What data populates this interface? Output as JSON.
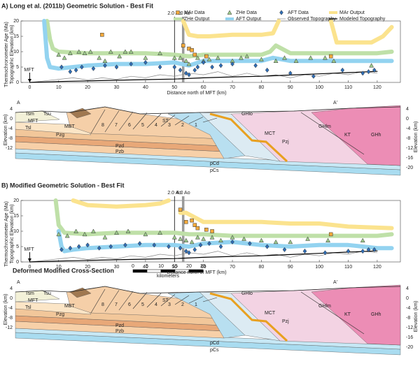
{
  "chart_data": [
    {
      "type": "scatter",
      "title": "A) Long et al. (2011b) Geometric Solution - Best Fit",
      "xlabel": "Distance north of MFT (km)",
      "ylabel": [
        "Thermochronometer Age (Ma)",
        "Topographic Elevation (km)"
      ],
      "xlim": [
        -3,
        128
      ],
      "ylim": [
        0,
        20
      ],
      "xticks": [
        0,
        10,
        20,
        30,
        40,
        50,
        60,
        70,
        80,
        90,
        100,
        110,
        120
      ],
      "yticks": [
        0,
        5,
        10,
        15,
        20
      ],
      "legend": "upper right",
      "annotations": [
        {
          "text": "2.0 Ao",
          "x": 50,
          "color": "#000000"
        },
        {
          "text": "4.0 Ao",
          "x": 53,
          "color": "#9a9a9a"
        },
        {
          "text": "MFT",
          "x": 0,
          "arrow": true
        }
      ],
      "series": [
        {
          "name": "MAr Output",
          "color": "#fbe38e",
          "width": 6,
          "x": [
            53,
            55,
            58,
            62,
            70,
            80,
            84,
            86,
            95,
            104,
            106,
            112,
            118,
            122,
            125
          ],
          "values": [
            20,
            15.5,
            15,
            15,
            15.5,
            15.5,
            16,
            20,
            null,
            20,
            13,
            13,
            13,
            15,
            18
          ]
        },
        {
          "name": "ZHe Output",
          "color": "#bfe0a8",
          "width": 6,
          "x": [
            6,
            7,
            8,
            10,
            20,
            30,
            40,
            50,
            55,
            60,
            70,
            80,
            83,
            85,
            90,
            100,
            110,
            120,
            125
          ],
          "values": [
            20,
            14,
            11,
            10,
            9.5,
            9.5,
            9.5,
            9,
            8.5,
            9,
            9,
            9,
            10,
            12,
            9.5,
            9.5,
            9.5,
            9.5,
            10
          ]
        },
        {
          "name": "AFT Output",
          "color": "#93d3f0",
          "width": 6,
          "x": [
            5,
            6,
            7,
            10,
            15,
            20,
            30,
            40,
            50,
            55,
            60,
            70,
            80,
            82,
            84,
            90,
            100,
            110,
            120,
            125
          ],
          "values": [
            20,
            8,
            5,
            4.5,
            5,
            5.5,
            6,
            6,
            6.5,
            5.5,
            7,
            7,
            7,
            7.5,
            8,
            7,
            7,
            7,
            7,
            7
          ]
        },
        {
          "name": "Observed Topography",
          "color": "#888888",
          "width": 0.7,
          "x": [
            0,
            5,
            10,
            15,
            20,
            25,
            30,
            35,
            40,
            45,
            50,
            55,
            60,
            65,
            70,
            75,
            80,
            85,
            90,
            95,
            100,
            105,
            110,
            115,
            120
          ],
          "values": [
            0,
            0.5,
            1,
            1.5,
            0.8,
            1.5,
            1,
            2,
            1.5,
            2.5,
            2,
            3,
            2.5,
            3.5,
            2,
            3,
            2,
            2.5,
            1.5,
            2.5,
            2,
            3,
            2.5,
            3.5,
            3
          ]
        },
        {
          "name": "Modeled Topography",
          "color": "#000000",
          "width": 1.2,
          "x": [
            0,
            10,
            20,
            30,
            40,
            50,
            60,
            70,
            80,
            90,
            100,
            110,
            120
          ],
          "values": [
            0,
            0.3,
            0.5,
            0.7,
            0.9,
            1.1,
            1.5,
            1.8,
            2,
            2.4,
            2.8,
            3.2,
            3.6
          ]
        },
        {
          "name": "MAr Data",
          "color": "#f2a93b",
          "marker": "square",
          "x": [
            25,
            53,
            55,
            56,
            57,
            61,
            104
          ],
          "values": [
            15.5,
            12,
            11,
            10.5,
            9,
            8.5,
            8.5
          ]
        },
        {
          "name": "ZHe Data",
          "color": "#9cc98a",
          "marker": "triangle",
          "x": [
            10,
            12,
            14,
            17,
            19,
            21,
            24,
            26,
            28,
            31,
            33,
            35,
            40,
            45,
            50,
            52,
            54,
            55,
            58,
            60,
            62,
            65,
            70,
            73,
            75,
            80,
            85,
            88,
            92,
            97,
            102,
            105,
            118
          ],
          "values": [
            9,
            8,
            9.5,
            10,
            9.5,
            10,
            8,
            7,
            10,
            8.5,
            10,
            10,
            8,
            9.5,
            8,
            8,
            7,
            6,
            8,
            7,
            7.5,
            8,
            7,
            8,
            8.5,
            7.5,
            7,
            8,
            7,
            8,
            8,
            7,
            5.5
          ]
        },
        {
          "name": "AFT Data",
          "color": "#2f6db5",
          "marker": "diamond",
          "x": [
            11,
            14,
            16,
            18,
            22,
            26,
            30,
            35,
            40,
            45,
            50,
            52,
            54,
            55,
            57,
            58,
            60,
            63,
            66,
            70,
            78,
            82,
            90,
            98,
            108,
            115,
            117,
            119
          ],
          "values": [
            5,
            3.5,
            4,
            5,
            4.5,
            5.5,
            5,
            6,
            6.5,
            5,
            5,
            4,
            3,
            2.5,
            4,
            5,
            6.5,
            5,
            5.5,
            6,
            5.5,
            4,
            3,
            2,
            4,
            3,
            3.5,
            4
          ]
        }
      ]
    },
    {
      "type": "scatter",
      "title": "B)  Modified Geometric Solution - Best Fit",
      "xlabel": "Distance north of MFT (km)",
      "ylabel": [
        "Thermochronometer Age (Ma)",
        "Topographic Elevation (km)"
      ],
      "xlim": [
        -3,
        128
      ],
      "ylim": [
        0,
        20
      ],
      "xticks": [
        0,
        10,
        20,
        30,
        40,
        50,
        60,
        70,
        80,
        90,
        100,
        110,
        120
      ],
      "yticks": [
        0,
        5,
        10,
        15,
        20
      ],
      "annotations": [
        {
          "text": "2.0 Ao",
          "x": 50,
          "color": "#000000"
        },
        {
          "text": "4.0 Ao",
          "x": 53,
          "color": "#9a9a9a"
        },
        {
          "text": "MFT",
          "x": 0,
          "arrow": true
        }
      ],
      "series": [
        {
          "color": "#fbe38e",
          "width": 6,
          "x": [
            15,
            20,
            30,
            40,
            45,
            48,
            51,
            52,
            54,
            56,
            58,
            60,
            70,
            80,
            90,
            100,
            110,
            125
          ],
          "values": [
            20,
            18.5,
            18,
            18.5,
            19,
            20,
            null,
            16,
            16,
            15,
            14,
            13,
            13,
            13,
            12.5,
            12.5,
            11.5,
            11
          ]
        },
        {
          "color": "#bfe0a8",
          "width": 6,
          "x": [
            9,
            10,
            12,
            20,
            30,
            40,
            50,
            55,
            60,
            70,
            80,
            90,
            100,
            110,
            120,
            125
          ],
          "values": [
            20,
            12,
            9.5,
            9,
            9.5,
            9.5,
            9.5,
            9,
            9,
            8.5,
            8.5,
            8.5,
            8.5,
            8.5,
            8.5,
            9
          ]
        },
        {
          "color": "#93d3f0",
          "width": 6,
          "x": [
            10,
            11,
            12,
            15,
            20,
            30,
            40,
            50,
            55,
            60,
            70,
            80,
            90,
            100,
            110,
            120,
            125
          ],
          "values": [
            10,
            5,
            3.5,
            4,
            4.5,
            5,
            5.5,
            5.5,
            5,
            6,
            6.5,
            5.5,
            5,
            5.5,
            5.5,
            4.5,
            4.5
          ]
        },
        {
          "color": "#888888",
          "width": 0.7,
          "x": [
            0,
            5,
            10,
            15,
            20,
            25,
            30,
            35,
            40,
            45,
            50,
            55,
            60,
            65,
            70,
            75,
            80,
            85,
            90,
            95,
            100,
            105,
            110,
            115,
            120
          ],
          "values": [
            0,
            0.5,
            1,
            1.5,
            0.8,
            1.5,
            1,
            2,
            1.5,
            2.5,
            2,
            3,
            2.5,
            3.5,
            2,
            3,
            2,
            2.5,
            1.5,
            2.5,
            2,
            3,
            2.5,
            3.5,
            3
          ]
        },
        {
          "color": "#000000",
          "width": 1.2,
          "x": [
            0,
            10,
            20,
            30,
            40,
            50,
            60,
            70,
            80,
            90,
            100,
            110,
            120
          ],
          "values": [
            0,
            0.3,
            0.5,
            0.7,
            0.9,
            1.1,
            1.5,
            1.8,
            2,
            2.4,
            2.8,
            3.2,
            3.6
          ]
        },
        {
          "color": "#f2a93b",
          "marker": "square",
          "x": [
            52,
            54,
            56,
            57,
            58,
            61,
            63,
            104
          ],
          "values": [
            17,
            13,
            13.5,
            12,
            11,
            10.5,
            10,
            9
          ]
        },
        {
          "color": "#9cc98a",
          "marker": "triangle",
          "x": [
            10,
            13,
            16,
            19,
            22,
            26,
            30,
            34,
            40,
            45,
            50,
            52,
            54,
            56,
            58,
            60,
            63,
            66,
            70,
            74,
            80,
            85,
            90,
            96,
            103,
            115
          ],
          "values": [
            9,
            8.5,
            10,
            9,
            10,
            8,
            9.5,
            10,
            9,
            9.5,
            8,
            7.5,
            7,
            6.5,
            8,
            7.5,
            8,
            7,
            8,
            7.5,
            7,
            6.5,
            6.5,
            7.5,
            7,
            7
          ]
        },
        {
          "color": "#2f6db5",
          "marker": "diamond",
          "x": [
            11,
            14,
            17,
            20,
            24,
            28,
            33,
            38,
            43,
            48,
            52,
            54,
            55,
            57,
            59,
            62,
            66,
            70,
            76,
            82,
            88,
            95,
            102,
            110,
            115,
            117,
            119
          ],
          "values": [
            4,
            4.5,
            5,
            5.5,
            4.5,
            5,
            5.5,
            6,
            5.5,
            5,
            4.5,
            3.5,
            3,
            4,
            5.5,
            6,
            5,
            6.5,
            6,
            5,
            4,
            3.5,
            3,
            3.5,
            3.5,
            4,
            4
          ]
        }
      ]
    }
  ],
  "cross_sections": [
    {
      "y_label": "Elevation (km)",
      "left_ticks": [
        "4",
        "0",
        "-4",
        "-8",
        "-12"
      ],
      "right_ticks": [
        "4",
        "0",
        "-4",
        "-8",
        "-12",
        "-16",
        "-20"
      ],
      "labels": [
        "A",
        "A'",
        "Tsm",
        "Tsu",
        "MFT",
        "Tsl",
        "MBT",
        "Pzg",
        "Pzd",
        "Pzb",
        "pCd",
        "pCs",
        "ST",
        "GHlo",
        "MCT",
        "Pzj",
        "GHlm",
        "KT",
        "GHh"
      ],
      "thrust_numbers": [
        "8",
        "7",
        "6",
        "5",
        "4",
        "3",
        "2",
        "1"
      ]
    },
    {
      "title": "Deformed Modified Cross-Section",
      "scale_bar": {
        "ticks": [
          "0",
          "5",
          "10",
          "15",
          "20",
          "25"
        ],
        "unit": "kilometers"
      },
      "y_label": "Elevation (km)",
      "left_ticks": [
        "4",
        "0",
        "-4",
        "-8",
        "-12"
      ],
      "right_ticks": [
        "4",
        "0",
        "-4",
        "-8",
        "-12",
        "-16",
        "-20"
      ],
      "labels": [
        "A",
        "A'",
        "Tsm",
        "Tsu",
        "MFT",
        "Tsl",
        "MBT",
        "Pzg",
        "Pzd",
        "Pzb",
        "pCd",
        "pCs",
        "ST",
        "GHlo",
        "MCT",
        "Pzj",
        "GHlm",
        "KT",
        "GHh"
      ],
      "thrust_numbers": [
        "8",
        "7",
        "6",
        "5",
        "4",
        "3",
        "2",
        "1"
      ]
    }
  ]
}
